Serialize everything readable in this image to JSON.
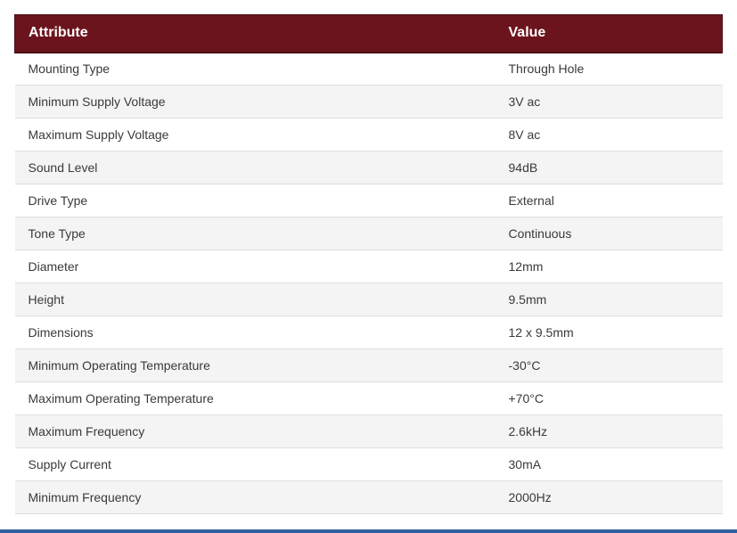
{
  "table": {
    "headers": [
      "Attribute",
      "Value"
    ],
    "rows": [
      [
        "Mounting Type",
        "Through Hole"
      ],
      [
        "Minimum Supply Voltage",
        "3V ac"
      ],
      [
        "Maximum Supply Voltage",
        "8V ac"
      ],
      [
        "Sound Level",
        "94dB"
      ],
      [
        "Drive Type",
        "External"
      ],
      [
        "Tone Type",
        "Continuous"
      ],
      [
        "Diameter",
        "12mm"
      ],
      [
        "Height",
        "9.5mm"
      ],
      [
        "Dimensions",
        "12 x 9.5mm"
      ],
      [
        "Minimum Operating Temperature",
        "-30°C"
      ],
      [
        "Maximum Operating Temperature",
        "+70°C"
      ],
      [
        "Maximum Frequency",
        "2.6kHz"
      ],
      [
        "Supply Current",
        "30mA"
      ],
      [
        "Minimum Frequency",
        "2000Hz"
      ]
    ]
  },
  "colors": {
    "header_bg": "#6b141d",
    "header_text": "#ffffff",
    "row_alt_bg": "#f4f4f4",
    "bottom_bar": "#2f5f9e"
  }
}
